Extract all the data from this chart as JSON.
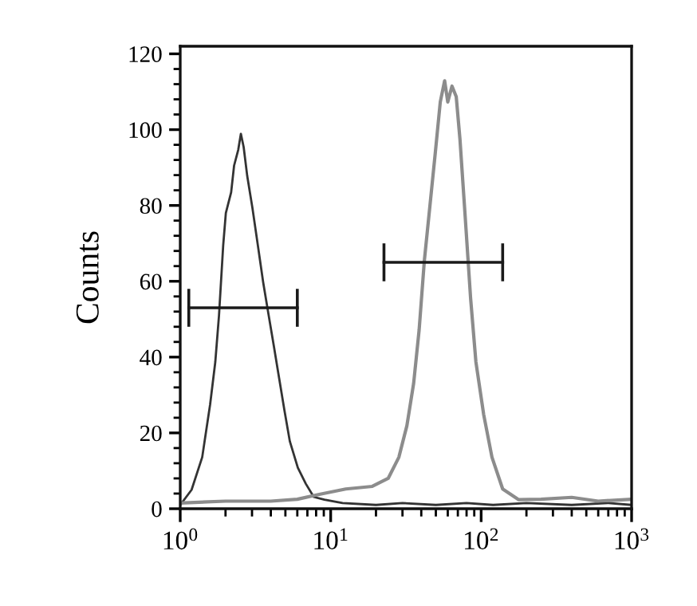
{
  "chart_data": {
    "type": "line",
    "ylabel": "Counts",
    "log": "x",
    "xlim": [
      1,
      1000
    ],
    "xticks": [
      {
        "value": 1,
        "label": "10$^{0}$"
      },
      {
        "value": 2,
        "label": null
      },
      {
        "value": 3,
        "label": null
      },
      {
        "value": 4,
        "label": null
      },
      {
        "value": 5,
        "label": null
      },
      {
        "value": 6,
        "label": null
      },
      {
        "value": 7,
        "label": null
      },
      {
        "value": 8,
        "label": null
      },
      {
        "value": 9,
        "label": null
      },
      {
        "value": 10,
        "label": "10$^{1}$"
      },
      {
        "value": 20,
        "label": null
      },
      {
        "value": 30,
        "label": null
      },
      {
        "value": 40,
        "label": null
      },
      {
        "value": 50,
        "label": null
      },
      {
        "value": 60,
        "label": null
      },
      {
        "value": 70,
        "label": null
      },
      {
        "value": 80,
        "label": null
      },
      {
        "value": 90,
        "label": null
      },
      {
        "value": 100,
        "label": "10$^{2}$"
      },
      {
        "value": 200,
        "label": null
      },
      {
        "value": 300,
        "label": null
      },
      {
        "value": 400,
        "label": null
      },
      {
        "value": 500,
        "label": null
      },
      {
        "value": 600,
        "label": null
      },
      {
        "value": 700,
        "label": null
      },
      {
        "value": 800,
        "label": null
      },
      {
        "value": 900,
        "label": null
      },
      {
        "value": 1000,
        "label": "10$^{3}$"
      }
    ],
    "ylim": [
      0,
      122
    ],
    "yticks": [
      0,
      {
        "value": 4,
        "label": null
      },
      {
        "value": 8,
        "label": null
      },
      {
        "value": 12,
        "label": null
      },
      {
        "value": 16,
        "label": null
      },
      20,
      {
        "value": 24,
        "label": null
      },
      {
        "value": 28,
        "label": null
      },
      {
        "value": 32,
        "label": null
      },
      {
        "value": 36,
        "label": null
      },
      40,
      {
        "value": 44,
        "label": null
      },
      {
        "value": 48,
        "label": null
      },
      {
        "value": 52,
        "label": null
      },
      {
        "value": 56,
        "label": null
      },
      60,
      {
        "value": 64,
        "label": null
      },
      {
        "value": 68,
        "label": null
      },
      {
        "value": 72,
        "label": null
      },
      {
        "value": 76,
        "label": null
      },
      80,
      {
        "value": 84,
        "label": null
      },
      {
        "value": 88,
        "label": null
      },
      {
        "value": 92,
        "label": null
      },
      {
        "value": 96,
        "label": null
      },
      100,
      {
        "value": 104,
        "label": null
      },
      {
        "value": 108,
        "label": null
      },
      {
        "value": 112,
        "label": null
      },
      {
        "value": 116,
        "label": null
      },
      120
    ],
    "series": [
      {
        "color": "#333333",
        "x": [
          1.0,
          1.19,
          1.4,
          1.58,
          1.71,
          1.81,
          1.93,
          2.01,
          2.18,
          2.28,
          2.43,
          2.53,
          2.64,
          2.79,
          3.02,
          3.28,
          3.56,
          3.86,
          4.19,
          4.54,
          4.92,
          5.35,
          6.05,
          6.83,
          7.72,
          9.08,
          12,
          20,
          30,
          50,
          80,
          120,
          200,
          400,
          700,
          1000
        ],
        "values": [
          1,
          5,
          13.6,
          27.5,
          38.7,
          51,
          69.5,
          78,
          83.5,
          90.5,
          94.7,
          98.9,
          95.4,
          87.7,
          79.3,
          69.5,
          59.7,
          51.3,
          42.9,
          34.5,
          26.1,
          17.8,
          10.8,
          6.6,
          3.1,
          2.4,
          1.5,
          1,
          1.5,
          1,
          1.5,
          1,
          1.5,
          1,
          1.5,
          1
        ]
      },
      {
        "color": "#8c8c8c",
        "x": [
          1.0,
          2,
          4,
          6,
          8.4,
          12.6,
          18.9,
          24.1,
          28.4,
          32.1,
          35.6,
          38.7,
          41.9,
          45.5,
          49.4,
          53.5,
          57.2,
          60,
          64,
          68.3,
          72.3,
          78.5,
          85.1,
          92.3,
          104,
          118,
          139,
          177,
          250,
          400,
          600,
          1000
        ],
        "values": [
          1.5,
          2,
          2,
          2.5,
          3.8,
          5.2,
          5.9,
          8,
          13.6,
          21.9,
          33.1,
          47.1,
          65.3,
          79.3,
          93.3,
          107.3,
          112.9,
          107.3,
          111.5,
          108.7,
          97.5,
          76.5,
          55.5,
          38.7,
          24.8,
          13.6,
          5.2,
          2.4,
          2.5,
          3,
          2,
          2.5
        ]
      },
      {
        "color": "#1a1a1a",
        "x": [
          1.14,
          6.0
        ],
        "values": [
          53,
          53
        ],
        "errors": [
          5,
          5
        ]
      },
      {
        "color": "#1a1a1a",
        "x": [
          22.6,
          139
        ],
        "values": [
          65,
          65
        ],
        "errors": [
          5,
          5
        ]
      }
    ]
  }
}
